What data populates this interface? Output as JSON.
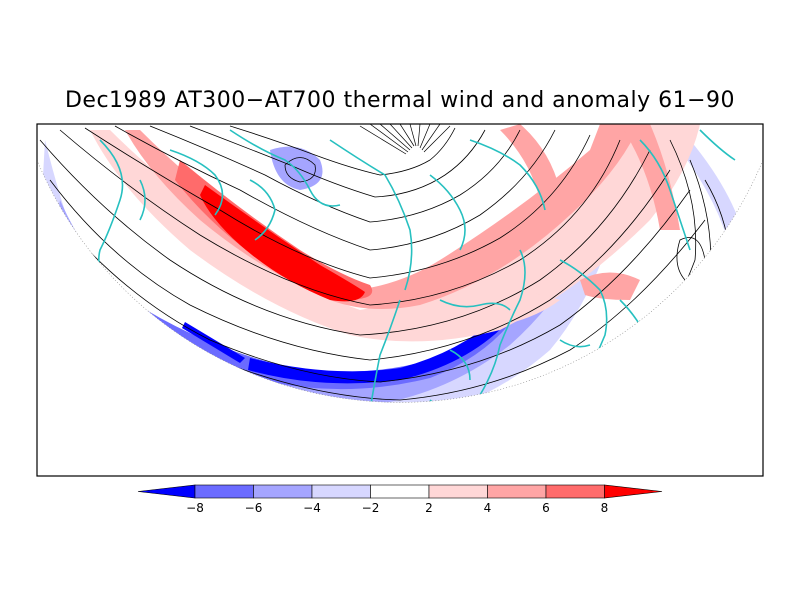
{
  "title": "Dec1989 AT300−AT700 thermal wind and anomaly 61−90",
  "colorbar": {
    "levels": [
      {
        "label": "−8",
        "value": -8
      },
      {
        "label": "−6",
        "value": -6
      },
      {
        "label": "−4",
        "value": -4
      },
      {
        "label": "−2",
        "value": -2
      },
      {
        "label": "2",
        "value": 2
      },
      {
        "label": "4",
        "value": 4
      },
      {
        "label": "6",
        "value": 6
      },
      {
        "label": "8",
        "value": 8
      }
    ],
    "colors": [
      "#0000ff",
      "#6b6bff",
      "#a5a5ff",
      "#d7d7ff",
      "#ffffff",
      "#ffd7d7",
      "#ffa5a5",
      "#ff6b6b",
      "#ff0000"
    ]
  },
  "colors": {
    "coastline": "#27c0c0",
    "streamline": "#000000"
  }
}
